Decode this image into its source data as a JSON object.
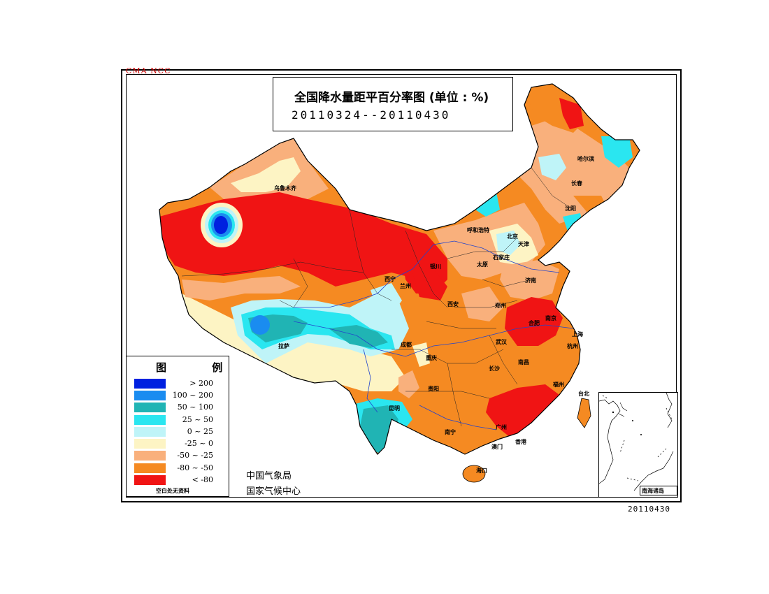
{
  "header": {
    "agency_mark": "CMA NCC",
    "title": "全国降水量距平百分率图 (单位 : %)",
    "date_range": "20110324--20110430"
  },
  "legend": {
    "title": "图 例",
    "items": [
      {
        "label": "> 200",
        "color": "#0020e0"
      },
      {
        "label": "100 ~ 200",
        "color": "#1a8cf0"
      },
      {
        "label": "50 ~ 100",
        "color": "#20b4b4"
      },
      {
        "label": "25 ~ 50",
        "color": "#2ae6f0"
      },
      {
        "label": "0 ~ 25",
        "color": "#bff4f8"
      },
      {
        "label": "-25 ~ 0",
        "color": "#fdf4c4"
      },
      {
        "label": "-50 ~ -25",
        "color": "#f9b07c"
      },
      {
        "label": "-80 ~ -50",
        "color": "#f58a22"
      },
      {
        "label": "< -80",
        "color": "#f01414"
      }
    ],
    "note": "空白处无资料"
  },
  "footer": {
    "org_line1": "中国气象局",
    "org_line2": "国家气候中心",
    "stamp": "20110430"
  },
  "inset": {
    "label": "南海诸岛"
  },
  "cities": [
    {
      "name": "乌鲁木齐"
    },
    {
      "name": "哈尔滨"
    },
    {
      "name": "长春"
    },
    {
      "name": "沈阳"
    },
    {
      "name": "呼和浩特"
    },
    {
      "name": "北京"
    },
    {
      "name": "天津"
    },
    {
      "name": "石家庄"
    },
    {
      "name": "太原"
    },
    {
      "name": "济南"
    },
    {
      "name": "银川"
    },
    {
      "name": "西宁"
    },
    {
      "name": "兰州"
    },
    {
      "name": "西安"
    },
    {
      "name": "郑州"
    },
    {
      "name": "合肥"
    },
    {
      "name": "南京"
    },
    {
      "name": "上海"
    },
    {
      "name": "杭州"
    },
    {
      "name": "武汉"
    },
    {
      "name": "成都"
    },
    {
      "name": "重庆"
    },
    {
      "name": "拉萨"
    },
    {
      "name": "长沙"
    },
    {
      "name": "南昌"
    },
    {
      "name": "福州"
    },
    {
      "name": "贵阳"
    },
    {
      "name": "昆明"
    },
    {
      "name": "南宁"
    },
    {
      "name": "广州"
    },
    {
      "name": "台北"
    },
    {
      "name": "香港"
    },
    {
      "name": "澳门"
    },
    {
      "name": "海口"
    }
  ]
}
